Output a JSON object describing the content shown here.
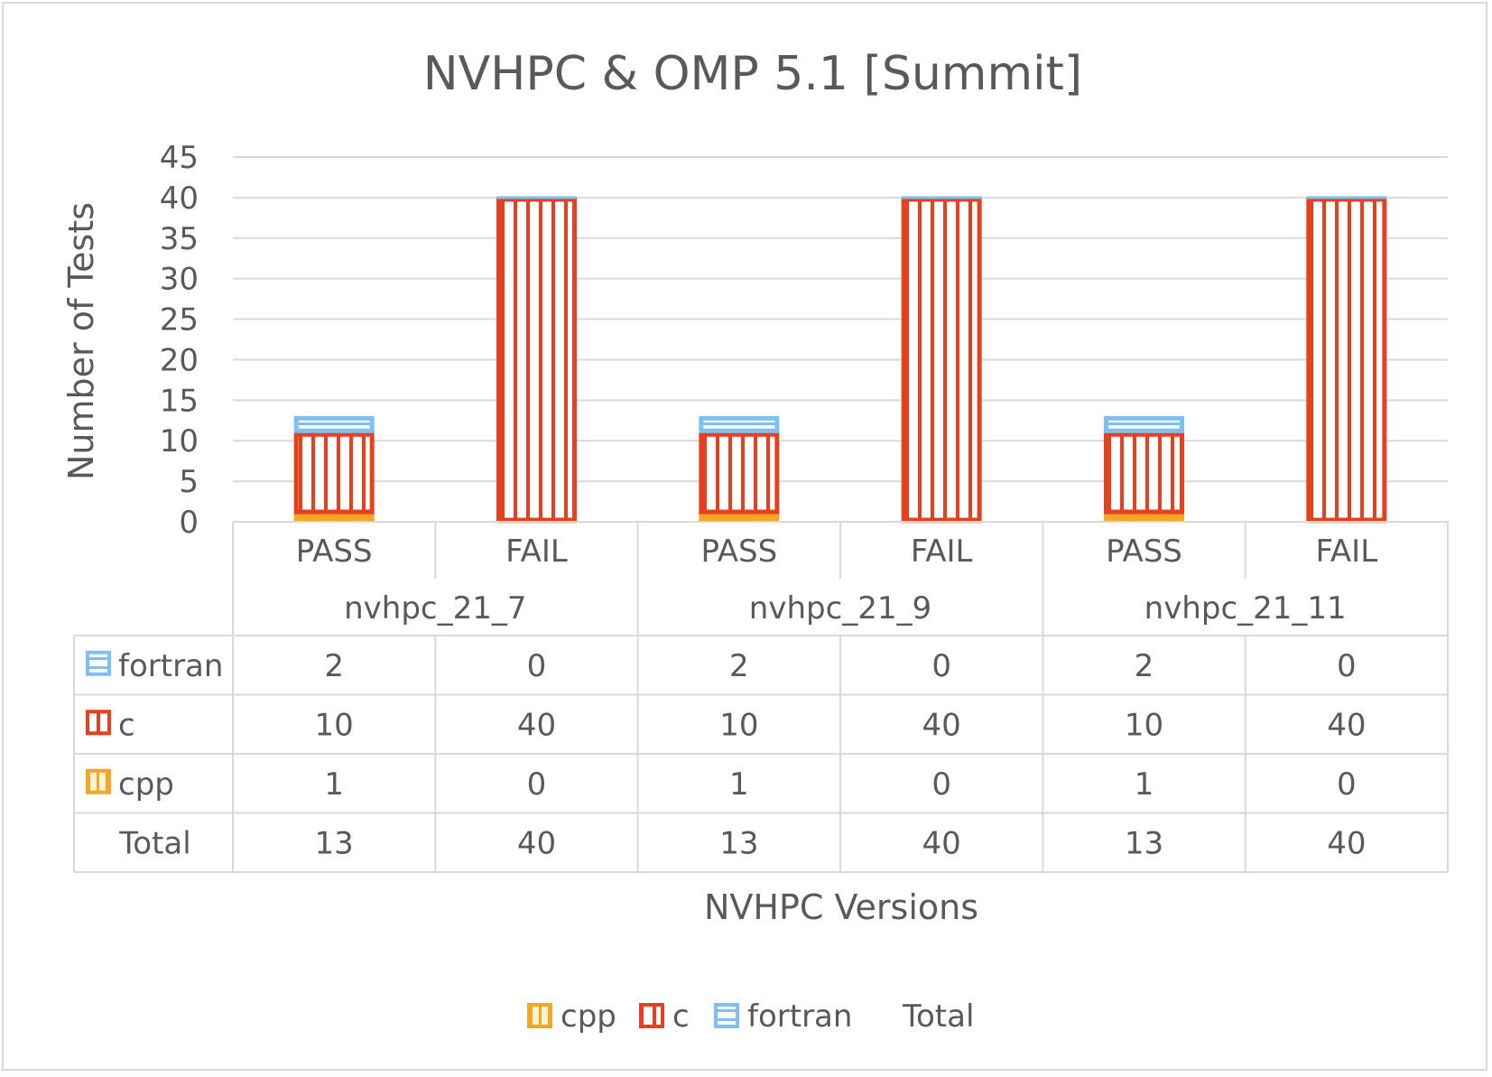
{
  "chart_data": {
    "type": "bar",
    "stacked": true,
    "title": "NVHPC & OMP 5.1 [Summit]",
    "ylabel": "Number of Tests",
    "xlabel": "NVHPC Versions",
    "ylim": [
      0,
      45
    ],
    "yticks": [
      0,
      5,
      10,
      15,
      20,
      25,
      30,
      35,
      40,
      45
    ],
    "grid": true,
    "legend_position": "bottom",
    "groups": [
      "nvhpc_21_7",
      "nvhpc_21_9",
      "nvhpc_21_11"
    ],
    "categories": [
      "PASS",
      "FAIL",
      "PASS",
      "FAIL",
      "PASS",
      "FAIL"
    ],
    "series": [
      {
        "name": "cpp",
        "color": "#f5a623",
        "pattern": "stripes-vertical-sparse",
        "values": [
          1,
          0,
          1,
          0,
          1,
          0
        ]
      },
      {
        "name": "c",
        "color": "#e8401c",
        "pattern": "stripes-vertical",
        "values": [
          10,
          40,
          10,
          40,
          10,
          40
        ]
      },
      {
        "name": "fortran",
        "color": "#7cc0f5",
        "pattern": "stripes-horizontal",
        "values": [
          2,
          0,
          2,
          0,
          2,
          0
        ]
      }
    ],
    "totals": {
      "name": "Total",
      "values": [
        13,
        40,
        13,
        40,
        13,
        40
      ]
    },
    "table_order": [
      "fortran",
      "c",
      "cpp"
    ],
    "legend_order": [
      "cpp",
      "c",
      "fortran",
      "Total"
    ]
  }
}
